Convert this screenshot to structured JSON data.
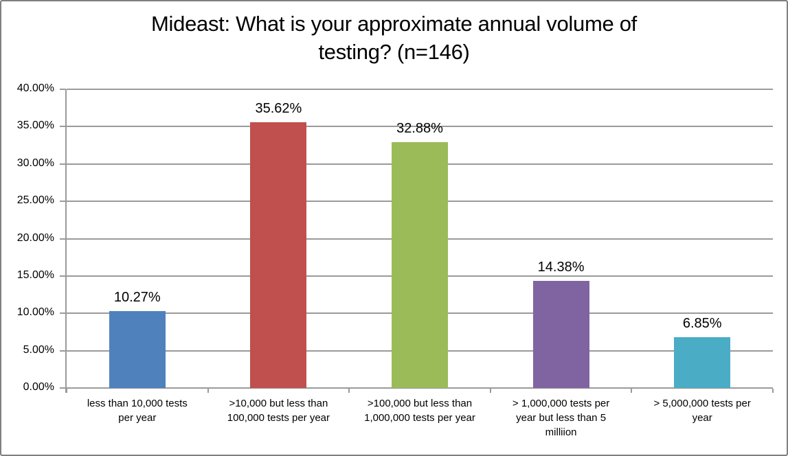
{
  "window": {
    "background": "#FFFFFF",
    "border_color": "#7F7F7F"
  },
  "chart_data": {
    "type": "bar",
    "title": "Mideast: What is your approximate annual volume of\ntesting? (n=146)",
    "categories": [
      "less than 10,000 tests\nper year",
      ">10,000 but less than\n100,000 tests per year",
      ">100,000 but less than\n1,000,000 tests per year",
      "> 1,000,000 tests per\nyear but less than 5\nmilliion",
      "> 5,000,000 tests per\nyear"
    ],
    "values": [
      10.27,
      35.62,
      32.88,
      14.38,
      6.85
    ],
    "data_labels": [
      "10.27%",
      "35.62%",
      "32.88%",
      "14.38%",
      "6.85%"
    ],
    "bar_colors": [
      "#4F81BD",
      "#C0504D",
      "#9BBB59",
      "#8064A2",
      "#4BACC6"
    ],
    "xlabel": "",
    "ylabel": "",
    "ylim": [
      0,
      40
    ],
    "yticks": [
      0,
      5,
      10,
      15,
      20,
      25,
      30,
      35,
      40
    ],
    "ytick_labels": [
      "0.00%",
      "5.00%",
      "10.00%",
      "15.00%",
      "20.00%",
      "25.00%",
      "30.00%",
      "35.00%",
      "40.00%"
    ],
    "grid": true,
    "legend": "none",
    "gridline_color": "#9A9A9A",
    "axis_color": "#9A9A9A",
    "label_color": "#000000"
  }
}
